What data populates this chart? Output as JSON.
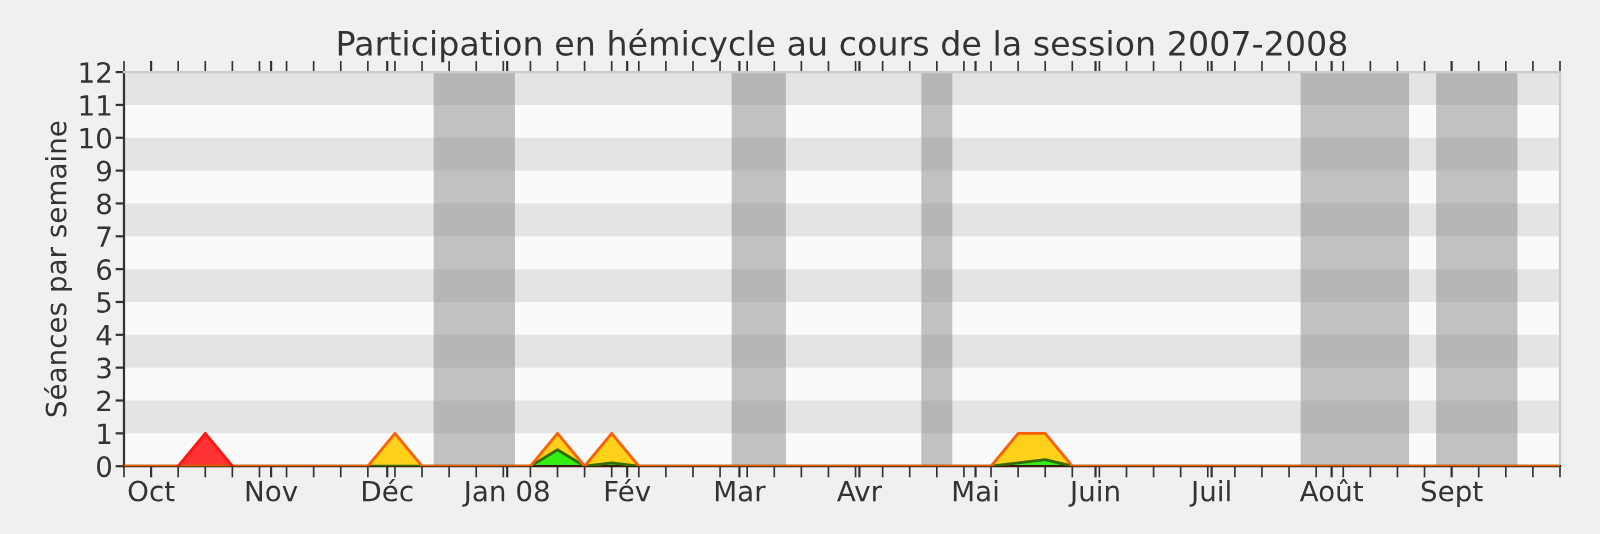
{
  "chart_data": {
    "type": "area",
    "title": "Participation en hémicycle au cours de la session 2007-2008",
    "ylabel": "Séances par semaine",
    "x": [
      "2007-09-24",
      "2007-10-08",
      "2007-10-15",
      "2007-10-22",
      "2007-11-26",
      "2007-12-03",
      "2007-12-10",
      "2008-01-07",
      "2008-01-14",
      "2008-01-21",
      "2008-01-28",
      "2008-02-04",
      "2008-05-05",
      "2008-05-12",
      "2008-05-19",
      "2008-05-26",
      "2008-09-29"
    ],
    "series": [
      {
        "color": "#33ee11",
        "values": [
          0,
          0,
          0,
          0,
          0,
          0,
          0,
          0,
          0.5,
          0,
          0.1,
          0,
          0,
          0.1,
          0.2,
          0,
          0
        ]
      },
      {
        "color": "#ffd11a",
        "values": [
          0,
          0,
          0,
          0,
          0,
          1,
          0,
          0,
          0.5,
          0,
          0.9,
          0,
          0,
          0.9,
          0.8,
          0,
          0
        ]
      },
      {
        "color": "#ff3333",
        "x": [
          "2007-10-08",
          "2007-10-15",
          "2007-10-22"
        ],
        "values": [
          0,
          1,
          0
        ]
      }
    ],
    "stacked": true,
    "xlim": [
      "2007-09-24",
      "2008-09-29"
    ],
    "xticks": [
      {
        "value": "2007-10-01",
        "label": "Oct"
      },
      {
        "value": "2007-11-01",
        "label": "Nov"
      },
      {
        "value": "2007-12-01",
        "label": "Déc"
      },
      {
        "value": "2008-01-01",
        "label": "Jan 08"
      },
      {
        "value": "2008-02-01",
        "label": "Fév"
      },
      {
        "value": "2008-03-01",
        "label": "Mar"
      },
      {
        "value": "2008-04-01",
        "label": "Avr"
      },
      {
        "value": "2008-05-01",
        "label": "Mai"
      },
      {
        "value": "2008-06-01",
        "label": "Juin"
      },
      {
        "value": "2008-07-01",
        "label": "Juil"
      },
      {
        "value": "2008-08-01",
        "label": "Août"
      },
      {
        "value": "2008-09-01",
        "label": "Sept"
      }
    ],
    "ylim": [
      0,
      12
    ],
    "yticks": [
      0,
      1,
      2,
      3,
      4,
      5,
      6,
      7,
      8,
      9,
      10,
      11,
      12
    ],
    "legend": false,
    "bands": [
      {
        "axis": "x",
        "from": "2007-12-13",
        "to": "2008-01-03",
        "color": "#888888"
      },
      {
        "axis": "x",
        "from": "2008-02-28",
        "to": "2008-03-13",
        "color": "#888888"
      },
      {
        "axis": "x",
        "from": "2008-04-17",
        "to": "2008-04-25",
        "color": "#888888"
      },
      {
        "axis": "x",
        "from": "2008-07-24",
        "to": "2008-08-21",
        "color": "#888888"
      },
      {
        "axis": "x",
        "from": "2008-08-28",
        "to": "2008-09-18",
        "color": "#888888"
      }
    ]
  }
}
